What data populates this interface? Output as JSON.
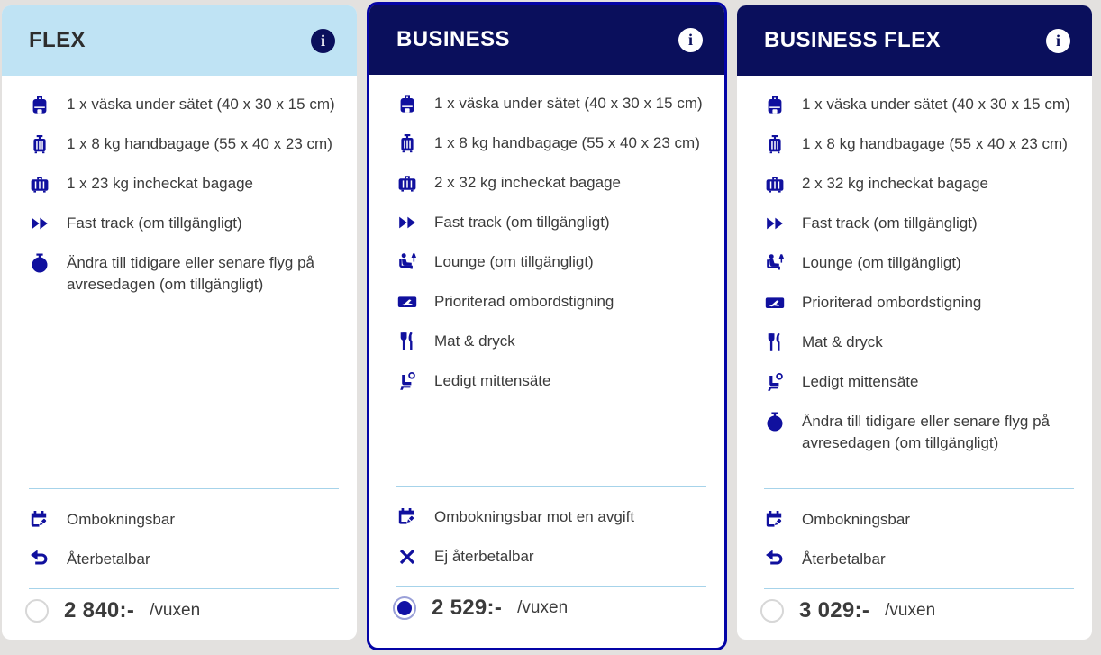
{
  "colors": {
    "page_background": "#e3e1df",
    "card_background": "#ffffff",
    "header_light": "#bfe3f4",
    "header_dark": "#0a0f5c",
    "selected_border": "#0404a6",
    "icon_blue": "#10109e",
    "divider_blue": "#a6d3ea",
    "body_text": "#3b3b3b"
  },
  "cards": [
    {
      "title": "FLEX",
      "header_theme": "light",
      "selected": false,
      "info_icon_label": "i",
      "features": [
        {
          "icon": "underseat-bag",
          "text": "1 x väska under sätet (40 x 30 x 15 cm)"
        },
        {
          "icon": "cabin-bag",
          "text": "1 x 8 kg handbagage (55 x 40 x 23 cm)"
        },
        {
          "icon": "checked-bag",
          "text": "1 x 23 kg incheckat bagage"
        },
        {
          "icon": "fast-track",
          "text": "Fast track (om tillgängligt)"
        },
        {
          "icon": "stopwatch",
          "text": "Ändra till tidigare eller senare flyg på avresedagen (om tillgängligt)"
        }
      ],
      "policies": [
        {
          "icon": "calendar-pencil",
          "text": "Ombokningsbar"
        },
        {
          "icon": "undo-arrow",
          "text": "Återbetalbar"
        }
      ],
      "price": "2 840:-",
      "price_unit": "/vuxen"
    },
    {
      "title": "BUSINESS",
      "header_theme": "dark",
      "selected": true,
      "info_icon_label": "i",
      "features": [
        {
          "icon": "underseat-bag",
          "text": "1 x väska under sätet (40 x 30 x 15 cm)"
        },
        {
          "icon": "cabin-bag",
          "text": "1 x 8 kg handbagage (55 x 40 x 23 cm)"
        },
        {
          "icon": "checked-bag",
          "text": "2 x 32 kg incheckat bagage"
        },
        {
          "icon": "fast-track",
          "text": "Fast track (om tillgängligt)"
        },
        {
          "icon": "lounge",
          "text": "Lounge (om tillgängligt)"
        },
        {
          "icon": "priority-boarding",
          "text": "Prioriterad ombordstigning"
        },
        {
          "icon": "food-drink",
          "text": "Mat & dryck"
        },
        {
          "icon": "empty-middle-seat",
          "text": "Ledigt mittensäte"
        }
      ],
      "policies": [
        {
          "icon": "calendar-pencil",
          "text": "Ombokningsbar mot en avgift"
        },
        {
          "icon": "x-mark",
          "text": "Ej återbetalbar"
        }
      ],
      "price": "2 529:-",
      "price_unit": "/vuxen"
    },
    {
      "title": "BUSINESS FLEX",
      "header_theme": "dark",
      "selected": false,
      "info_icon_label": "i",
      "features": [
        {
          "icon": "underseat-bag",
          "text": "1 x väska under sätet (40 x 30 x 15 cm)"
        },
        {
          "icon": "cabin-bag",
          "text": "1 x 8 kg handbagage (55 x 40 x 23 cm)"
        },
        {
          "icon": "checked-bag",
          "text": "2 x 32 kg incheckat bagage"
        },
        {
          "icon": "fast-track",
          "text": "Fast track (om tillgängligt)"
        },
        {
          "icon": "lounge",
          "text": "Lounge (om tillgängligt)"
        },
        {
          "icon": "priority-boarding",
          "text": "Prioriterad ombordstigning"
        },
        {
          "icon": "food-drink",
          "text": "Mat & dryck"
        },
        {
          "icon": "empty-middle-seat",
          "text": "Ledigt mittensäte"
        },
        {
          "icon": "stopwatch",
          "text": "Ändra till tidigare eller senare flyg på avresedagen (om tillgängligt)"
        }
      ],
      "policies": [
        {
          "icon": "calendar-pencil",
          "text": "Ombokningsbar"
        },
        {
          "icon": "undo-arrow",
          "text": "Återbetalbar"
        }
      ],
      "price": "3 029:-",
      "price_unit": "/vuxen"
    }
  ]
}
